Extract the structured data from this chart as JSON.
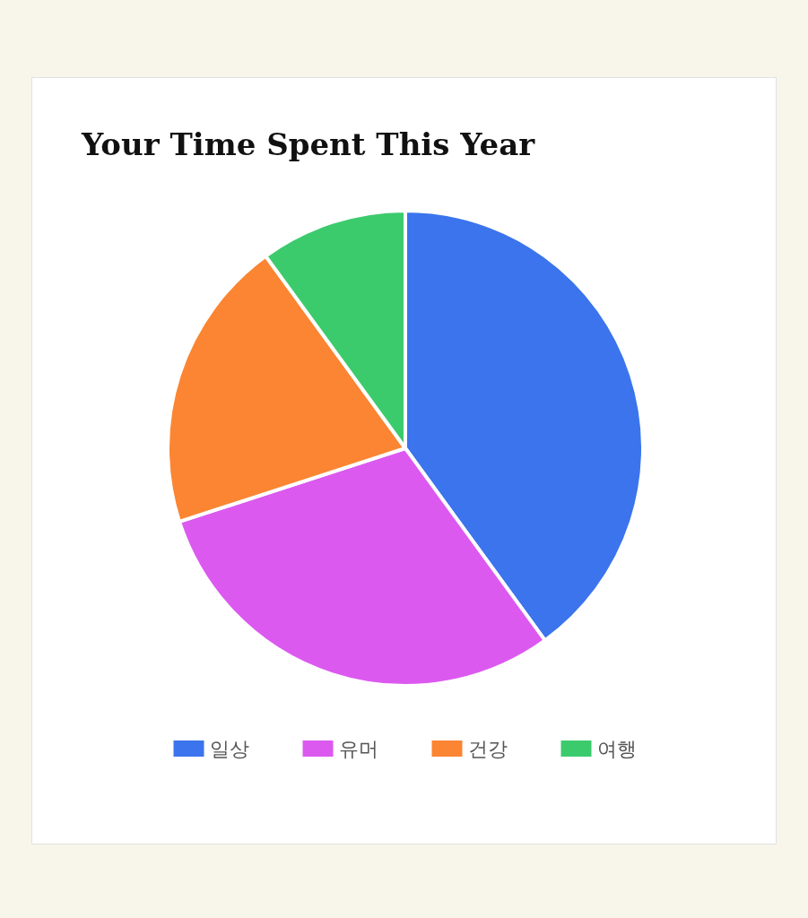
{
  "chart_data": {
    "type": "pie",
    "title": "Your Time Spent This Year",
    "categories": [
      "일상",
      "유머",
      "건강",
      "여행"
    ],
    "values": [
      40,
      30,
      20,
      10
    ],
    "colors": [
      "#3b74ec",
      "#dc59f0",
      "#fb8532",
      "#3bcb6d"
    ],
    "legend": "bottom"
  }
}
